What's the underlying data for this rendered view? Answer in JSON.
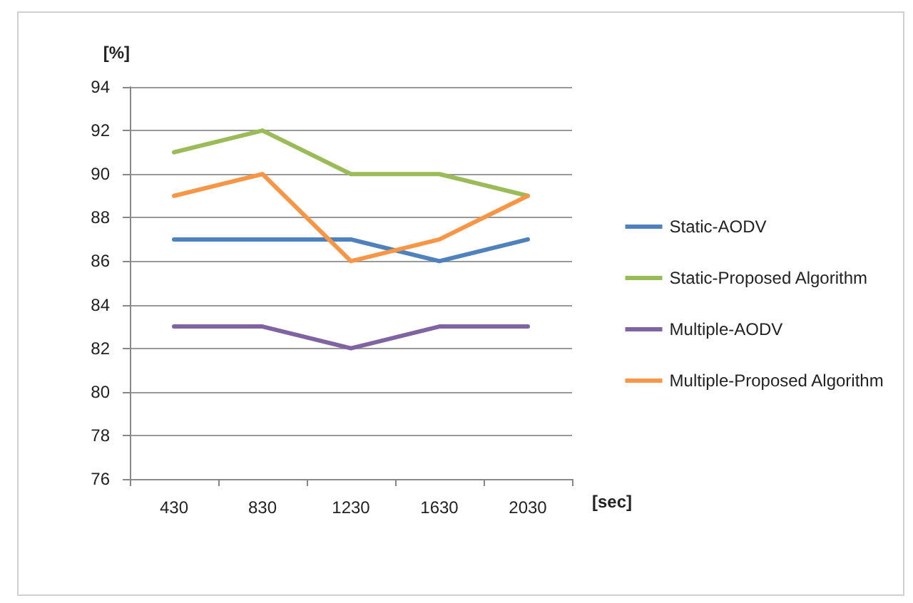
{
  "chart_data": {
    "type": "line",
    "ylabel": "[%]",
    "xlabel": "[sec]",
    "categories": [
      "430",
      "830",
      "1230",
      "1630",
      "2030"
    ],
    "series": [
      {
        "name": "Static-AODV",
        "color": "#4f81bd",
        "values": [
          87,
          87,
          87,
          86,
          87
        ]
      },
      {
        "name": "Static-Proposed Algorithm",
        "color": "#9bbb59",
        "values": [
          91,
          92,
          90,
          90,
          89
        ]
      },
      {
        "name": "Multiple-AODV",
        "color": "#8064a2",
        "values": [
          83,
          83,
          82,
          83,
          83
        ]
      },
      {
        "name": "Multiple-Proposed Algorithm",
        "color": "#f79646",
        "values": [
          89,
          90,
          86,
          87,
          89
        ]
      }
    ],
    "ylim": [
      76,
      94
    ],
    "yticks": [
      76,
      78,
      80,
      82,
      84,
      86,
      88,
      90,
      92,
      94
    ],
    "grid": "y",
    "legend": "right",
    "marker": "none",
    "line_style": "solid"
  }
}
